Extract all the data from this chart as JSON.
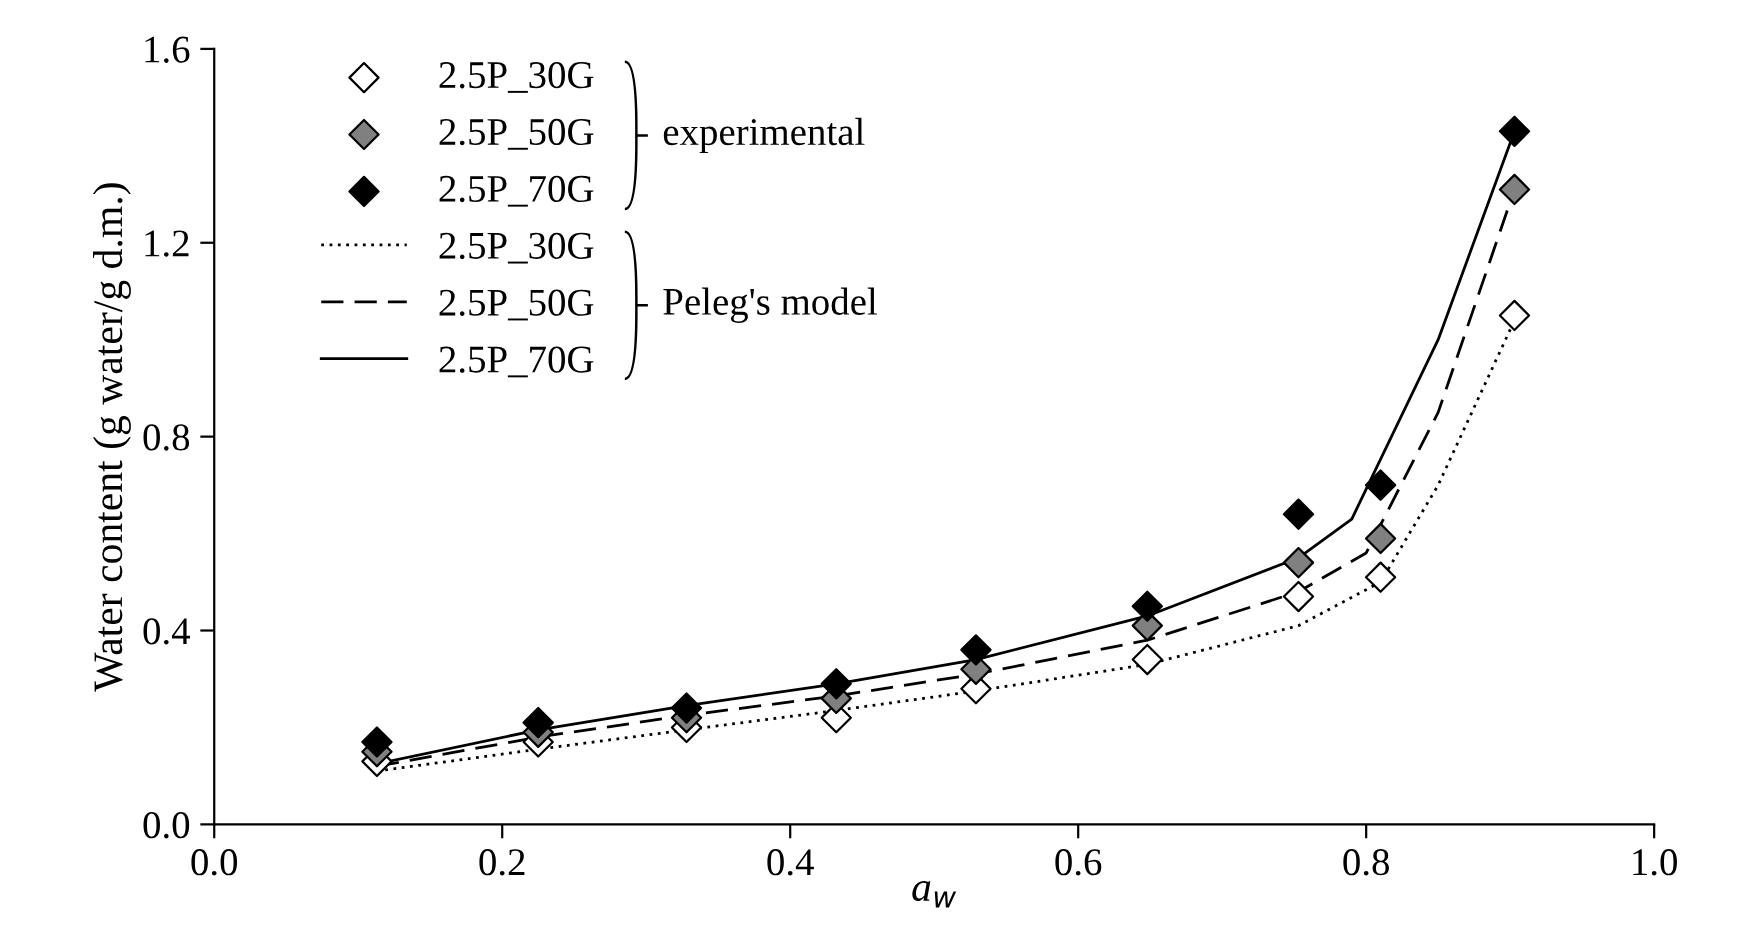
{
  "chart_data": {
    "type": "scatter",
    "xlabel": "a$_{w}$",
    "ylabel": "Water content (g water/g d.m.)",
    "xlim": [
      0.0,
      1.0
    ],
    "xticks": [
      {
        "value": 0.0,
        "label": "0.0"
      },
      0.2,
      0.4,
      0.6,
      0.8,
      {
        "value": 1.0,
        "label": "1.0"
      }
    ],
    "ylim": [
      0.0,
      1.6
    ],
    "yticks": [
      {
        "value": 0.0,
        "label": "0.0"
      },
      0.4,
      0.8,
      1.2,
      1.6
    ],
    "x": [
      0.113,
      0.225,
      0.328,
      0.432,
      0.529,
      0.648,
      0.753,
      0.81,
      0.903
    ],
    "grid": false,
    "legend": "top left",
    "annotations": [
      "experimental",
      "Peleg's model"
    ],
    "series": [
      {
        "name": "2.5P_30G",
        "marker": "diamond",
        "color": "#ffffff",
        "values": [
          0.13,
          0.17,
          0.2,
          0.22,
          0.28,
          0.34,
          0.47,
          0.51,
          1.05
        ]
      },
      {
        "name": "2.5P_50G",
        "marker": "diamond",
        "color": "#808080",
        "values": [
          0.15,
          0.19,
          0.22,
          0.26,
          0.32,
          0.41,
          0.54,
          0.59,
          1.31
        ]
      },
      {
        "name": "2.5P_70G",
        "marker": "diamond",
        "color": "#000000",
        "values": [
          0.17,
          0.21,
          0.24,
          0.29,
          0.36,
          0.45,
          0.64,
          0.7,
          1.43
        ]
      },
      {
        "name": "2.5P_30G",
        "type": "line",
        "line_style": "dotted",
        "color": "#000000",
        "x": [
          0.113,
          0.225,
          0.328,
          0.432,
          0.529,
          0.648,
          0.753,
          0.81,
          0.85,
          0.903
        ],
        "values": [
          0.11,
          0.155,
          0.195,
          0.235,
          0.275,
          0.33,
          0.41,
          0.5,
          0.7,
          1.04
        ]
      },
      {
        "name": "2.5P_50G",
        "type": "line",
        "line_style": "dashed",
        "color": "#000000",
        "x": [
          0.113,
          0.225,
          0.328,
          0.432,
          0.529,
          0.648,
          0.753,
          0.8,
          0.85,
          0.903
        ],
        "values": [
          0.12,
          0.18,
          0.225,
          0.265,
          0.31,
          0.38,
          0.48,
          0.56,
          0.85,
          1.31
        ]
      },
      {
        "name": "2.5P_70G",
        "type": "line",
        "line_style": "solid",
        "color": "#000000",
        "x": [
          0.113,
          0.225,
          0.328,
          0.432,
          0.529,
          0.648,
          0.753,
          0.79,
          0.85,
          0.903
        ],
        "values": [
          0.125,
          0.195,
          0.245,
          0.29,
          0.34,
          0.43,
          0.55,
          0.63,
          1.0,
          1.43
        ]
      }
    ]
  }
}
